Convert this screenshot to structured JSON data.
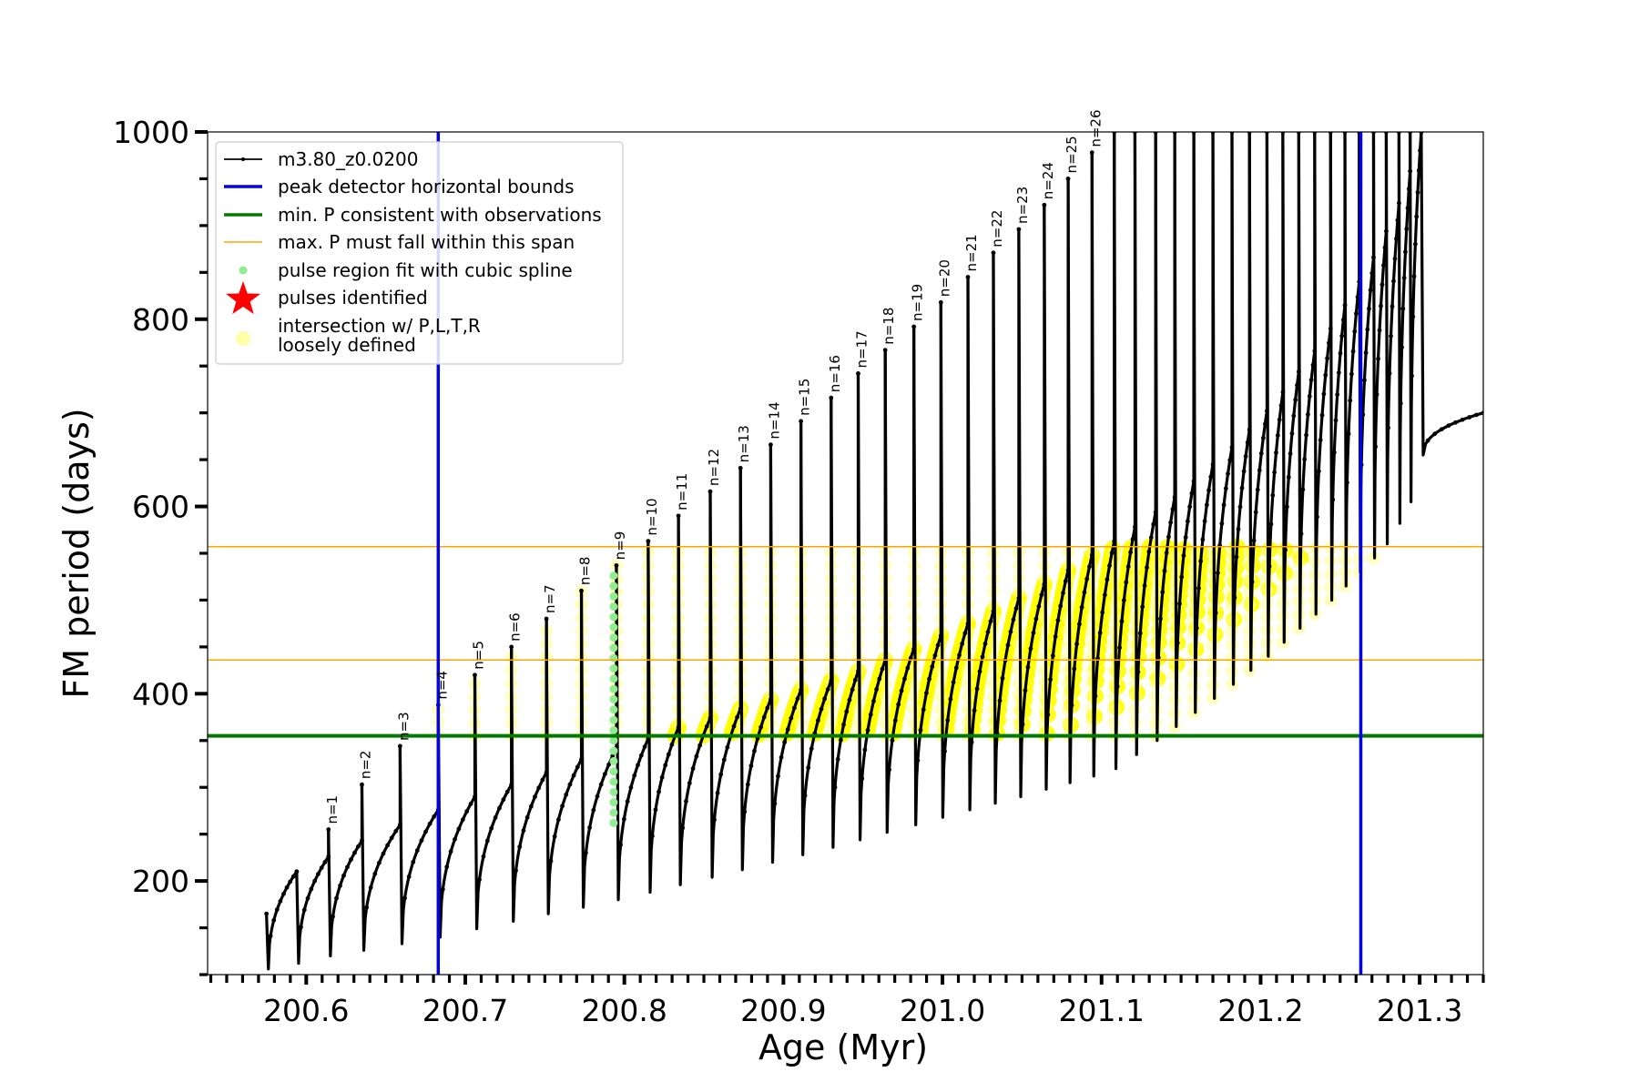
{
  "chart_data": {
    "type": "line",
    "title": "",
    "xlabel": "Age (Myr)",
    "ylabel": "FM period (days)",
    "xlim": [
      200.538,
      201.34
    ],
    "ylim": [
      100,
      1000
    ],
    "xticks": [
      {
        "value": 200.6,
        "label": "200.6"
      },
      {
        "value": 200.7,
        "label": "200.7"
      },
      {
        "value": 200.8,
        "label": "200.8"
      },
      {
        "value": 200.9,
        "label": "200.9"
      },
      {
        "value": 201.0,
        "label": "201.0"
      },
      {
        "value": 201.1,
        "label": "201.1"
      },
      {
        "value": 201.2,
        "label": "201.2"
      },
      {
        "value": 201.3,
        "label": "201.3"
      }
    ],
    "yticks": [
      {
        "value": 200,
        "label": "200"
      },
      {
        "value": 400,
        "label": "400"
      },
      {
        "value": 600,
        "label": "600"
      },
      {
        "value": 800,
        "label": "800"
      },
      {
        "value": 1000,
        "label": "1000"
      }
    ],
    "grid": false,
    "legend_position": "top-left",
    "legend": [
      {
        "label": "m3.80_z0.0200",
        "kind": "line-dots",
        "color": "#000000"
      },
      {
        "label": "peak detector horizontal bounds",
        "kind": "line",
        "color": "#0000ee"
      },
      {
        "label": "min. P consistent with observations",
        "kind": "line",
        "color": "#007a00"
      },
      {
        "label": "max. P must fall within this span",
        "kind": "thin-line",
        "color": "#ffa500"
      },
      {
        "label": "pulse region fit with cubic spline",
        "kind": "dot",
        "color": "#90ee90"
      },
      {
        "label": "pulses identified",
        "kind": "star",
        "color": "#ff0000"
      },
      {
        "label": "intersection w/ P,L,T,R\nloosely defined",
        "kind": "big-dot",
        "color": "#ffffa8"
      }
    ],
    "vertical_lines": [
      {
        "x": 200.683,
        "color": "#0000ee"
      },
      {
        "x": 201.263,
        "color": "#0000ee"
      }
    ],
    "horizontal_lines": [
      {
        "y": 355,
        "color": "#007a00",
        "width": 4
      },
      {
        "y": 436,
        "color": "#ffa500",
        "width": 1.5
      },
      {
        "y": 557,
        "color": "#ffa500",
        "width": 1.5
      }
    ],
    "pulses": [
      {
        "x": 200.594,
        "top": 210,
        "low": 112,
        "prev_end": 210
      },
      {
        "x": 200.614,
        "top": 255,
        "low": 120,
        "prev_end": 226,
        "label": "n=1"
      },
      {
        "x": 200.635,
        "top": 303,
        "low": 126,
        "prev_end": 243,
        "label": "n=2"
      },
      {
        "x": 200.659,
        "top": 344,
        "low": 133,
        "prev_end": 260,
        "label": "n=3"
      },
      {
        "x": 200.683,
        "top": 388,
        "low": 140,
        "prev_end": 276,
        "label": "n=4"
      },
      {
        "x": 200.706,
        "top": 420,
        "low": 149,
        "prev_end": 290,
        "label": "n=5"
      },
      {
        "x": 200.729,
        "top": 450,
        "low": 157,
        "prev_end": 303,
        "label": "n=6"
      },
      {
        "x": 200.751,
        "top": 480,
        "low": 165,
        "prev_end": 316,
        "label": "n=7"
      },
      {
        "x": 200.773,
        "top": 510,
        "low": 172,
        "prev_end": 330,
        "label": "n=8"
      },
      {
        "x": 200.795,
        "top": 537,
        "low": 180,
        "prev_end": 342,
        "label": "n=9"
      },
      {
        "x": 200.815,
        "top": 563,
        "low": 188,
        "prev_end": 352,
        "label": "n=10"
      },
      {
        "x": 200.834,
        "top": 590,
        "low": 196,
        "prev_end": 364,
        "label": "n=11"
      },
      {
        "x": 200.854,
        "top": 616,
        "low": 204,
        "prev_end": 374,
        "label": "n=12"
      },
      {
        "x": 200.873,
        "top": 641,
        "low": 212,
        "prev_end": 384,
        "label": "n=13"
      },
      {
        "x": 200.892,
        "top": 666,
        "low": 220,
        "prev_end": 394,
        "label": "n=14"
      },
      {
        "x": 200.911,
        "top": 691,
        "low": 228,
        "prev_end": 404,
        "label": "n=15"
      },
      {
        "x": 200.93,
        "top": 716,
        "low": 236,
        "prev_end": 414,
        "label": "n=16"
      },
      {
        "x": 200.947,
        "top": 742,
        "low": 244,
        "prev_end": 424,
        "label": "n=17"
      },
      {
        "x": 200.964,
        "top": 767,
        "low": 252,
        "prev_end": 436,
        "label": "n=18"
      },
      {
        "x": 200.982,
        "top": 792,
        "low": 260,
        "prev_end": 448,
        "label": "n=19"
      },
      {
        "x": 200.999,
        "top": 818,
        "low": 268,
        "prev_end": 462,
        "label": "n=20"
      },
      {
        "x": 201.016,
        "top": 845,
        "low": 276,
        "prev_end": 475,
        "label": "n=21"
      },
      {
        "x": 201.032,
        "top": 871,
        "low": 283,
        "prev_end": 488,
        "label": "n=22"
      },
      {
        "x": 201.048,
        "top": 896,
        "low": 290,
        "prev_end": 502,
        "label": "n=23"
      },
      {
        "x": 201.064,
        "top": 922,
        "low": 298,
        "prev_end": 517,
        "label": "n=24"
      },
      {
        "x": 201.079,
        "top": 950,
        "low": 305,
        "prev_end": 532,
        "label": "n=25"
      },
      {
        "x": 201.094,
        "top": 978,
        "low": 312,
        "prev_end": 548,
        "label": "n=26"
      },
      {
        "x": 201.108,
        "top": 1000,
        "low": 320,
        "prev_end": 563
      },
      {
        "x": 201.121,
        "top": 1000,
        "low": 335,
        "prev_end": 578
      },
      {
        "x": 201.134,
        "top": 1000,
        "low": 350,
        "prev_end": 594
      },
      {
        "x": 201.146,
        "top": 1000,
        "low": 365,
        "prev_end": 610
      },
      {
        "x": 201.158,
        "top": 1000,
        "low": 380,
        "prev_end": 627
      },
      {
        "x": 201.17,
        "top": 1000,
        "low": 395,
        "prev_end": 645
      },
      {
        "x": 201.182,
        "top": 1000,
        "low": 410,
        "prev_end": 663
      },
      {
        "x": 201.193,
        "top": 1000,
        "low": 425,
        "prev_end": 682
      },
      {
        "x": 201.204,
        "top": 1000,
        "low": 440,
        "prev_end": 702
      },
      {
        "x": 201.214,
        "top": 1000,
        "low": 455,
        "prev_end": 722
      },
      {
        "x": 201.224,
        "top": 1000,
        "low": 470,
        "prev_end": 744
      },
      {
        "x": 201.234,
        "top": 1000,
        "low": 485,
        "prev_end": 766
      },
      {
        "x": 201.244,
        "top": 1000,
        "low": 500,
        "prev_end": 790
      },
      {
        "x": 201.253,
        "top": 1000,
        "low": 515,
        "prev_end": 815
      },
      {
        "x": 201.262,
        "top": 1000,
        "low": 530,
        "prev_end": 840
      },
      {
        "x": 201.271,
        "top": 1000,
        "low": 545,
        "prev_end": 866
      },
      {
        "x": 201.279,
        "top": 1000,
        "low": 560,
        "prev_end": 894
      },
      {
        "x": 201.287,
        "top": 1000,
        "low": 582,
        "prev_end": 924
      },
      {
        "x": 201.294,
        "top": 1000,
        "low": 605,
        "prev_end": 958
      },
      {
        "x": 201.301,
        "top": 1000,
        "low": 655,
        "prev_end": 1000
      }
    ],
    "series_start": {
      "x": 200.575,
      "y": 165,
      "low": 106
    }
  }
}
